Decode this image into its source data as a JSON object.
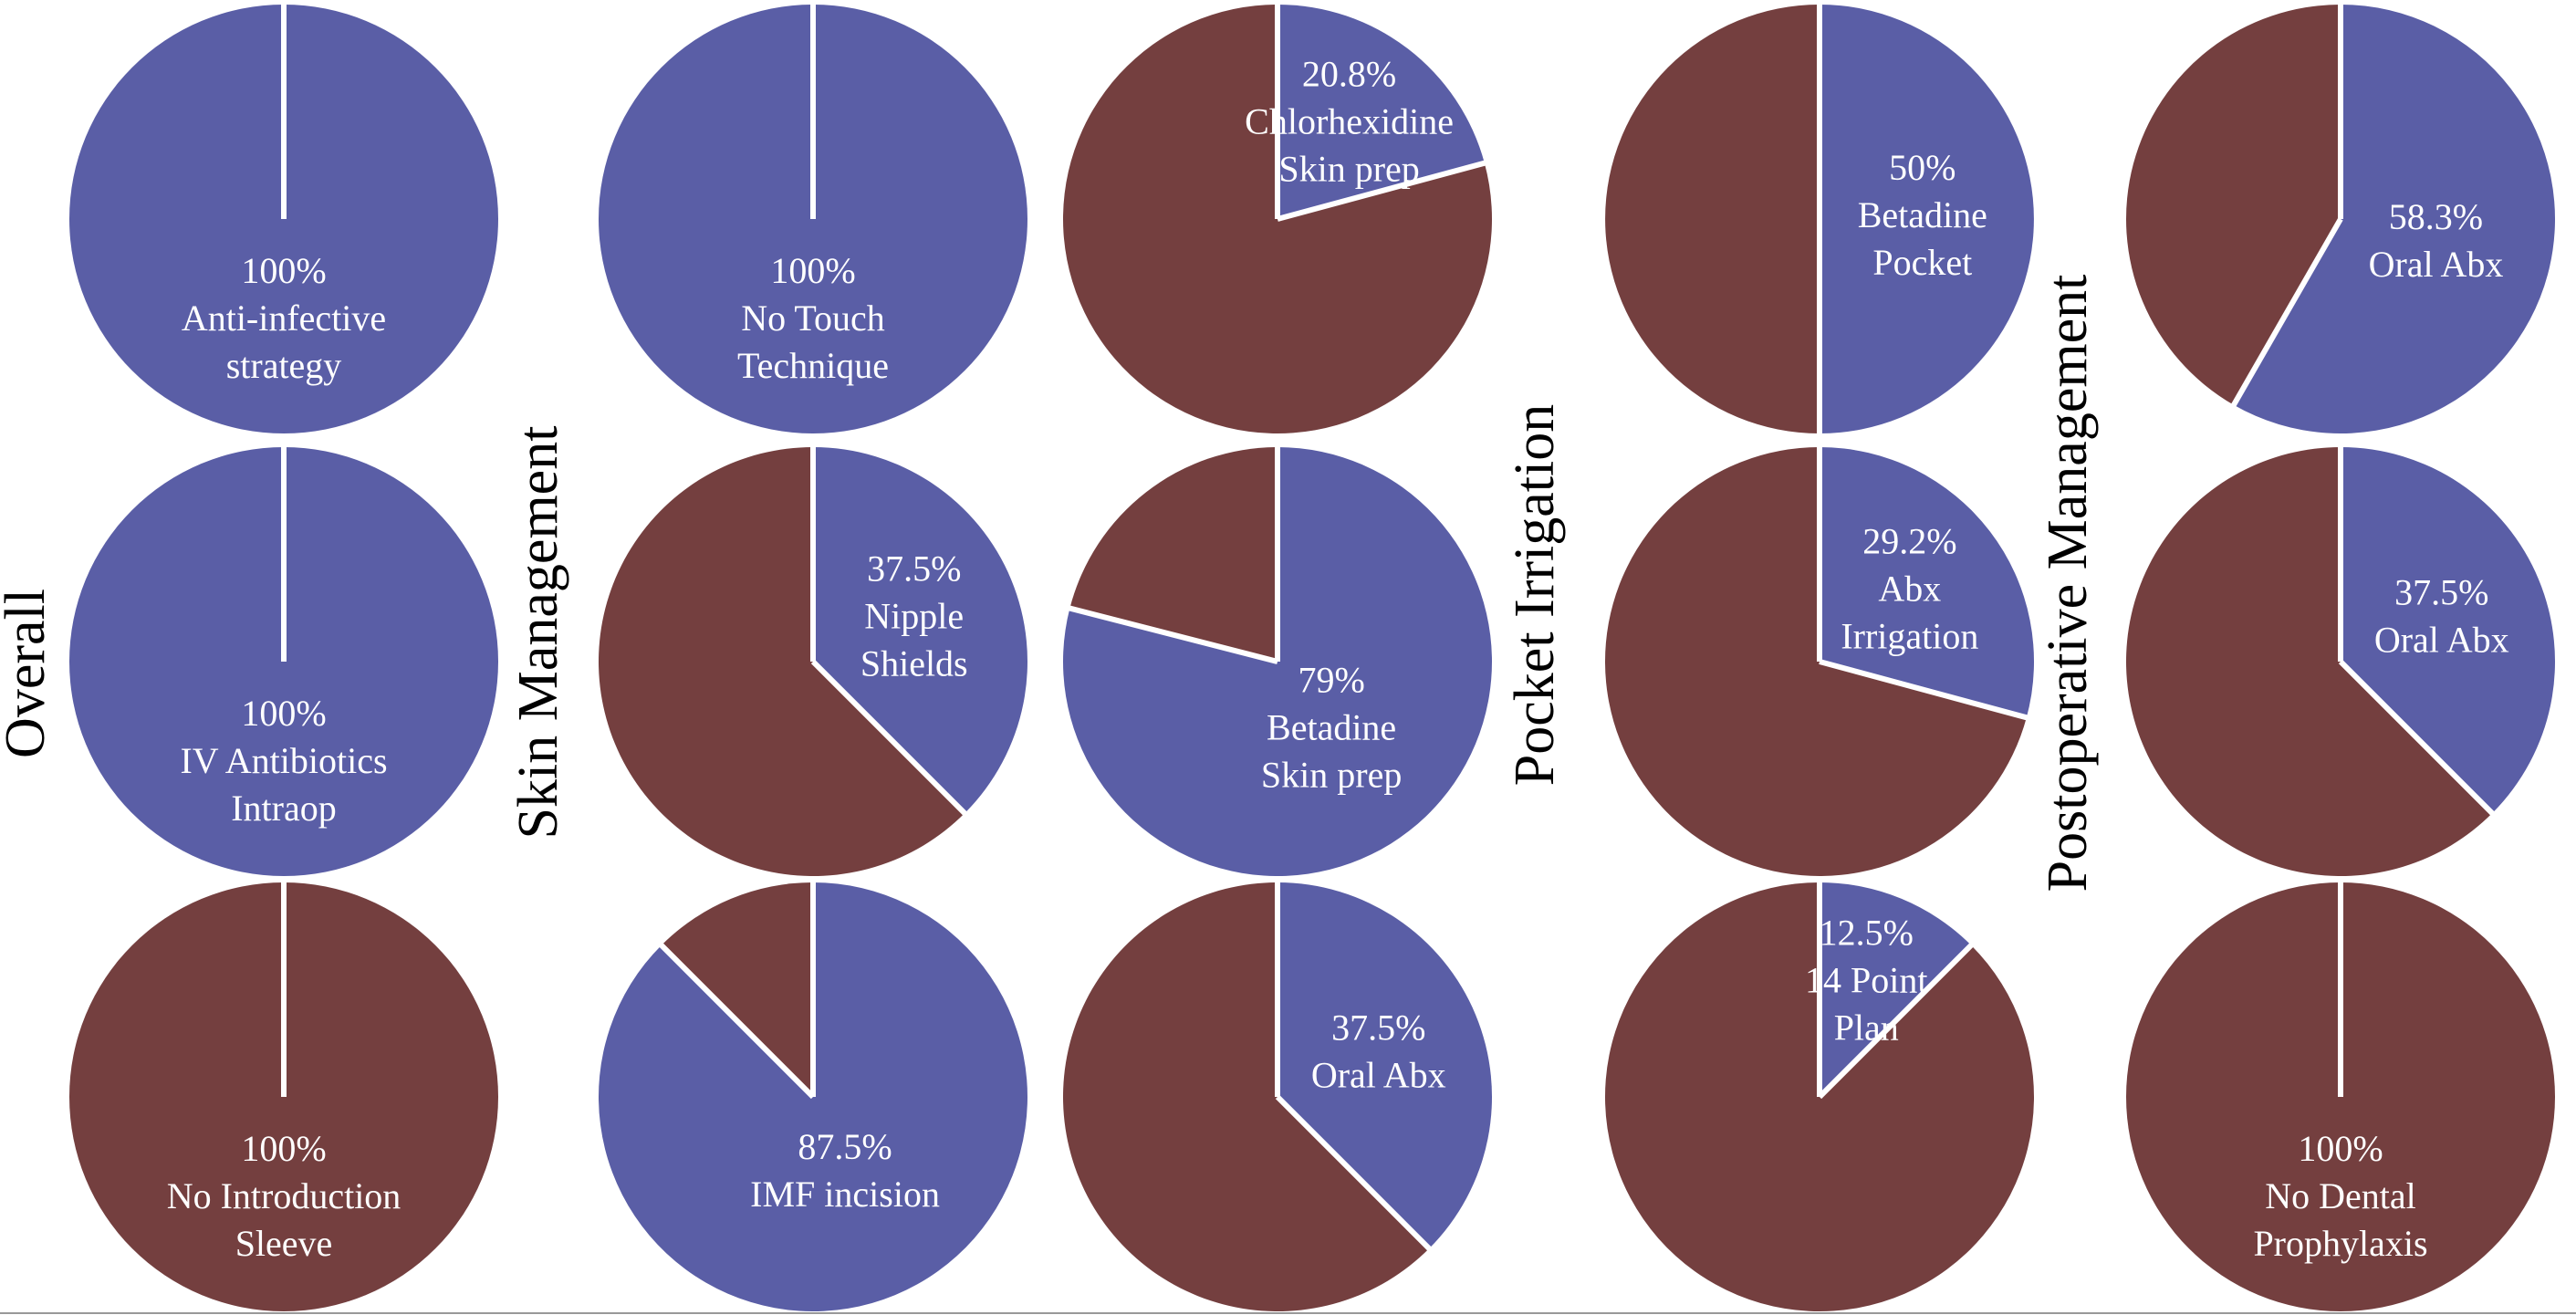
{
  "sections": [
    "Overall",
    "Skin Management",
    "Pocket Irrigation",
    "Postoperative Management"
  ],
  "chart_data": [
    {
      "type": "pie",
      "values": [
        100,
        0
      ],
      "colors": [
        "#5a5ea6",
        "#743f3f"
      ],
      "value_labels": [
        "100%",
        null
      ],
      "labels": [
        [
          "Anti-infective",
          "strategy"
        ],
        null
      ]
    },
    {
      "type": "pie",
      "values": [
        100,
        0
      ],
      "colors": [
        "#5a5ea6",
        "#743f3f"
      ],
      "value_labels": [
        "100%",
        null
      ],
      "labels": [
        [
          "No Touch",
          "Technique"
        ],
        null
      ]
    },
    {
      "type": "pie",
      "values": [
        20.8,
        79.2
      ],
      "colors": [
        "#5a5ea6",
        "#743f3f"
      ],
      "value_labels": [
        "20.8%",
        null
      ],
      "labels": [
        [
          "Chlorhexidine",
          "Skin prep"
        ],
        null
      ]
    },
    {
      "type": "pie",
      "values": [
        50,
        50
      ],
      "colors": [
        "#5a5ea6",
        "#743f3f"
      ],
      "value_labels": [
        "50%",
        null
      ],
      "labels": [
        [
          "Betadine",
          "Pocket"
        ],
        null
      ]
    },
    {
      "type": "pie",
      "values": [
        58.3,
        41.7
      ],
      "colors": [
        "#5a5ea6",
        "#743f3f"
      ],
      "value_labels": [
        "58.3%",
        null
      ],
      "labels": [
        [
          "Oral Abx"
        ],
        null
      ]
    },
    {
      "type": "pie",
      "values": [
        100,
        0
      ],
      "colors": [
        "#5a5ea6",
        "#743f3f"
      ],
      "value_labels": [
        "100%",
        null
      ],
      "labels": [
        [
          "IV Antibiotics",
          "Intraop"
        ],
        null
      ]
    },
    {
      "type": "pie",
      "values": [
        37.5,
        62.5
      ],
      "colors": [
        "#5a5ea6",
        "#743f3f"
      ],
      "value_labels": [
        "37.5%",
        null
      ],
      "labels": [
        [
          "Nipple",
          "Shields"
        ],
        null
      ]
    },
    {
      "type": "pie",
      "values": [
        79,
        21
      ],
      "colors": [
        "#5a5ea6",
        "#743f3f"
      ],
      "value_labels": [
        "79%",
        null
      ],
      "labels": [
        [
          "Betadine",
          "Skin prep"
        ],
        null
      ]
    },
    {
      "type": "pie",
      "values": [
        29.2,
        70.8
      ],
      "colors": [
        "#5a5ea6",
        "#743f3f"
      ],
      "value_labels": [
        "29.2%",
        null
      ],
      "labels": [
        [
          "Abx",
          "Irrigation"
        ],
        null
      ]
    },
    {
      "type": "pie",
      "values": [
        37.5,
        62.5
      ],
      "colors": [
        "#5a5ea6",
        "#743f3f"
      ],
      "value_labels": [
        "37.5%",
        null
      ],
      "labels": [
        [
          "Oral Abx"
        ],
        null
      ]
    },
    {
      "type": "pie",
      "values": [
        0,
        100
      ],
      "colors": [
        "#5a5ea6",
        "#743f3f"
      ],
      "value_labels": [
        null,
        "100%"
      ],
      "labels": [
        null,
        [
          "No Introduction",
          "Sleeve"
        ]
      ]
    },
    {
      "type": "pie",
      "values": [
        87.5,
        12.5
      ],
      "colors": [
        "#5a5ea6",
        "#743f3f"
      ],
      "value_labels": [
        "87.5%",
        null
      ],
      "labels": [
        [
          "IMF incision"
        ],
        null
      ]
    },
    {
      "type": "pie",
      "values": [
        37.5,
        62.5
      ],
      "colors": [
        "#5a5ea6",
        "#743f3f"
      ],
      "value_labels": [
        "37.5%",
        null
      ],
      "labels": [
        [
          "Oral Abx"
        ],
        null
      ]
    },
    {
      "type": "pie",
      "values": [
        12.5,
        87.5
      ],
      "colors": [
        "#5a5ea6",
        "#743f3f"
      ],
      "value_labels": [
        "12.5%",
        null
      ],
      "labels": [
        [
          "14 Point",
          "Plan"
        ],
        null
      ]
    },
    {
      "type": "pie",
      "values": [
        0,
        100
      ],
      "colors": [
        "#5a5ea6",
        "#743f3f"
      ],
      "value_labels": [
        null,
        "100%"
      ],
      "labels": [
        null,
        [
          "No Dental",
          "Prophylaxis"
        ]
      ]
    }
  ]
}
